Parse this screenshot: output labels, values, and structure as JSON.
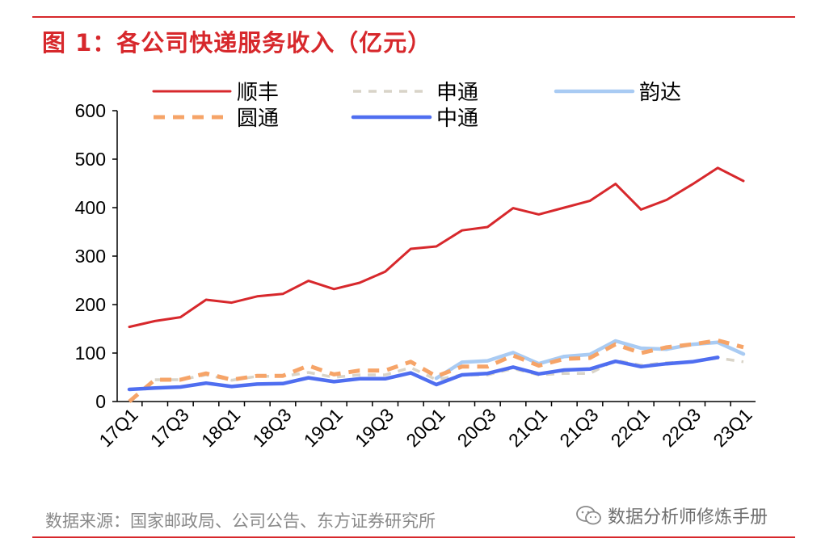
{
  "figure": {
    "title": "图 1：各公司快递服务收入（亿元）",
    "source": "数据来源：国家邮政局、公司公告、东方证券研究所",
    "watermark": "数据分析师修炼手册"
  },
  "colors": {
    "accent": "#d7282c",
    "sf": "#d7282c",
    "sto": "#d9d4c8",
    "yunda": "#a9cbf3",
    "yto": "#f6a468",
    "zto": "#4f6ef0"
  },
  "chart_data": {
    "type": "line",
    "title": "各公司快递服务收入（亿元）",
    "ylim": [
      0,
      600
    ],
    "yticks": [
      0,
      100,
      200,
      300,
      400,
      500,
      600
    ],
    "xtick_labels": [
      "17Q1",
      "17Q3",
      "18Q1",
      "18Q3",
      "19Q1",
      "19Q3",
      "20Q1",
      "20Q3",
      "21Q1",
      "21Q3",
      "22Q1",
      "22Q3",
      "23Q1"
    ],
    "x": [
      "17Q1",
      "17Q2",
      "17Q3",
      "17Q4",
      "18Q1",
      "18Q2",
      "18Q3",
      "18Q4",
      "19Q1",
      "19Q2",
      "19Q3",
      "19Q4",
      "20Q1",
      "20Q2",
      "20Q3",
      "20Q4",
      "21Q1",
      "21Q2",
      "21Q3",
      "21Q4",
      "22Q1",
      "22Q2",
      "22Q3",
      "22Q4",
      "23Q1"
    ],
    "legend_position": "top",
    "series": [
      {
        "name": "顺丰",
        "color_key": "sf",
        "style": "solid",
        "values": [
          154,
          166,
          174,
          210,
          204,
          217,
          222,
          249,
          232,
          245,
          268,
          315,
          320,
          353,
          360,
          399,
          386,
          400,
          414,
          449,
          396,
          416,
          448,
          482,
          455
        ]
      },
      {
        "name": "申通",
        "color_key": "sto",
        "style": "dashed",
        "values": [
          null,
          45,
          45,
          55,
          44,
          52,
          52,
          60,
          50,
          55,
          55,
          70,
          45,
          55,
          55,
          68,
          55,
          58,
          58,
          85,
          75,
          80,
          82,
          90,
          82
        ]
      },
      {
        "name": "韵达",
        "color_key": "yunda",
        "style": "solid",
        "values": [
          null,
          null,
          null,
          null,
          null,
          null,
          null,
          null,
          null,
          null,
          null,
          null,
          48,
          81,
          84,
          101,
          78,
          93,
          97,
          125,
          110,
          108,
          118,
          122,
          98
        ]
      },
      {
        "name": "圆通",
        "color_key": "yto",
        "style": "dashed",
        "values": [
          0,
          45,
          45,
          58,
          45,
          53,
          53,
          74,
          56,
          64,
          64,
          82,
          52,
          72,
          72,
          95,
          74,
          88,
          90,
          118,
          100,
          112,
          118,
          126,
          112
        ]
      },
      {
        "name": "中通",
        "color_key": "zto",
        "style": "solid",
        "values": [
          25,
          28,
          30,
          38,
          31,
          36,
          37,
          49,
          41,
          47,
          47,
          59,
          35,
          55,
          58,
          71,
          57,
          65,
          67,
          83,
          72,
          78,
          82,
          91,
          null
        ]
      }
    ]
  }
}
